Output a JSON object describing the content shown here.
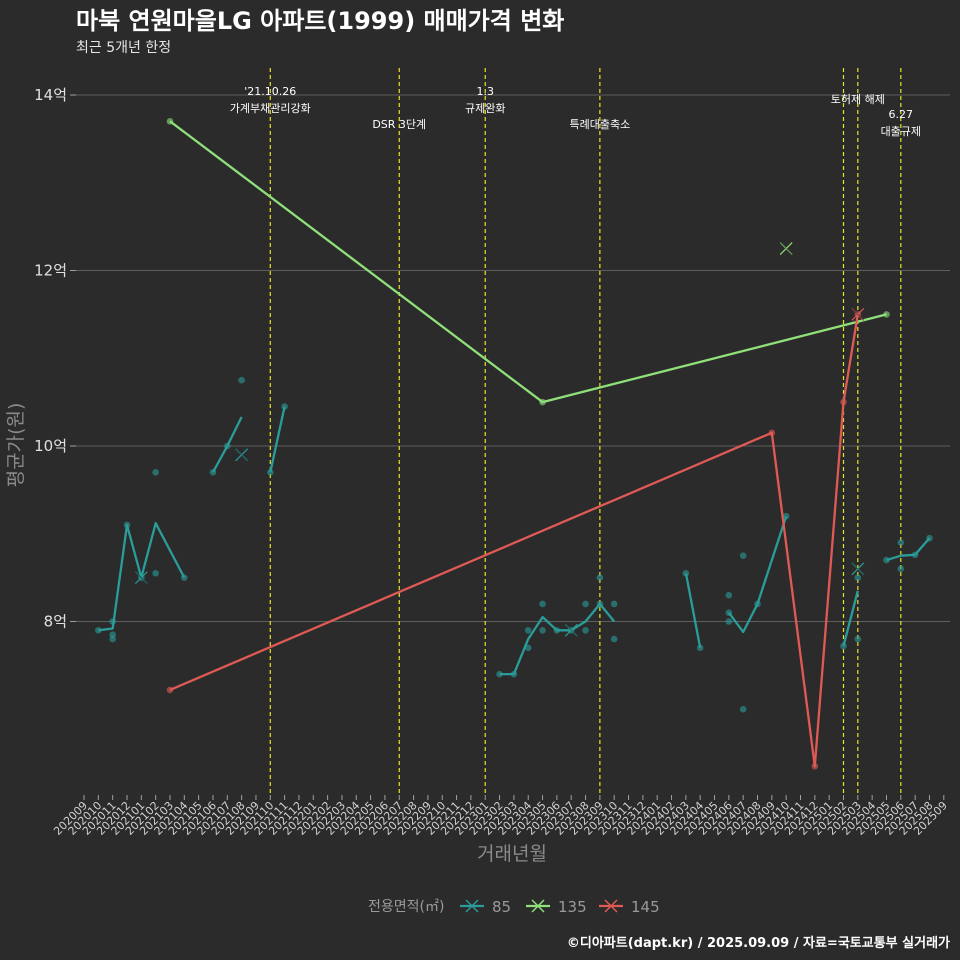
{
  "chart_data": {
    "type": "line",
    "title": "마북 연원마을LG 아파트(1999) 매매가격 변화",
    "subtitle": "최근 5개년 한정",
    "xlabel": "거래년월",
    "ylabel": "평균가(원)",
    "caption": "©디아파트(dapt.kr) / 2025.09.09 / 자료=국토교통부 실거래가",
    "ylim": [
      6.0,
      14.3
    ],
    "y_ticks": [
      {
        "value": 8,
        "label": "8억"
      },
      {
        "value": 10,
        "label": "10억"
      },
      {
        "value": 12,
        "label": "12억"
      },
      {
        "value": 14,
        "label": "14억"
      }
    ],
    "x_categories": [
      "202009",
      "202010",
      "202011",
      "202012",
      "202101",
      "202102",
      "202103",
      "202104",
      "202105",
      "202106",
      "202107",
      "202108",
      "202109",
      "202110",
      "202111",
      "202112",
      "202201",
      "202202",
      "202203",
      "202204",
      "202205",
      "202206",
      "202207",
      "202208",
      "202209",
      "202210",
      "202211",
      "202212",
      "202301",
      "202302",
      "202303",
      "202304",
      "202305",
      "202306",
      "202307",
      "202308",
      "202309",
      "202310",
      "202311",
      "202312",
      "202401",
      "202402",
      "202403",
      "202404",
      "202405",
      "202406",
      "202407",
      "202408",
      "202409",
      "202410",
      "202411",
      "202412",
      "202501",
      "202502",
      "202503",
      "202504",
      "202505",
      "202506",
      "202507",
      "202508",
      "202509"
    ],
    "annotations": [
      {
        "x": 13,
        "lines": [
          "'21.10.26",
          "가계부채관리강화"
        ],
        "level": "high"
      },
      {
        "x": 22,
        "lines": [
          "DSR 3단계"
        ],
        "level": "low"
      },
      {
        "x": 28,
        "lines": [
          "1.3",
          "규제완화"
        ],
        "level": "high"
      },
      {
        "x": 36,
        "lines": [
          "특례대출축소"
        ],
        "level": "low"
      },
      {
        "x": 53,
        "lines": [],
        "level": "none"
      },
      {
        "x": 54,
        "lines": [
          "토허제 해제"
        ],
        "level": "mid"
      },
      {
        "x": 57,
        "lines": [
          "6.27",
          "대출규제"
        ],
        "level": "low2"
      }
    ],
    "legend_title": "전용면적(㎡)",
    "series": [
      {
        "name": "85",
        "color": "#2a9d9a",
        "segments": [
          [
            [
              1,
              7.9
            ],
            [
              2,
              7.92
            ],
            [
              3,
              9.1
            ],
            [
              4,
              8.5
            ],
            [
              5,
              9.12
            ],
            [
              7,
              8.5
            ]
          ],
          [
            [
              9,
              9.7
            ],
            [
              10,
              10.0
            ],
            [
              11,
              10.33
            ]
          ],
          [
            [
              13,
              9.7
            ],
            [
              14,
              10.45
            ]
          ],
          [
            [
              29,
              7.4
            ],
            [
              30,
              7.4
            ],
            [
              31,
              7.8
            ],
            [
              32,
              8.05
            ],
            [
              33,
              7.9
            ],
            [
              34,
              7.9
            ],
            [
              35,
              8.0
            ],
            [
              36,
              8.2
            ],
            [
              37,
              8.0
            ]
          ],
          [
            [
              42,
              8.55
            ],
            [
              43,
              7.7
            ]
          ],
          [
            [
              45,
              8.1
            ],
            [
              46,
              7.88
            ],
            [
              47,
              8.2
            ],
            [
              49,
              9.2
            ]
          ],
          [
            [
              53,
              7.72
            ],
            [
              54,
              8.35
            ]
          ],
          [
            [
              56,
              8.7
            ],
            [
              57,
              8.75
            ],
            [
              58,
              8.76
            ],
            [
              59,
              8.95
            ]
          ]
        ],
        "points": [
          [
            1,
            7.9
          ],
          [
            2,
            7.85
          ],
          [
            2,
            7.8
          ],
          [
            2,
            8.0
          ],
          [
            3,
            9.1
          ],
          [
            4,
            8.5
          ],
          [
            5,
            9.7
          ],
          [
            5,
            8.55
          ],
          [
            7,
            8.5
          ],
          [
            9,
            9.7
          ],
          [
            10,
            10.0
          ],
          [
            11,
            10.75
          ],
          [
            13,
            9.7
          ],
          [
            14,
            10.45
          ],
          [
            29,
            7.4
          ],
          [
            30,
            7.4
          ],
          [
            31,
            7.9
          ],
          [
            31,
            7.7
          ],
          [
            32,
            8.2
          ],
          [
            32,
            7.9
          ],
          [
            33,
            7.9
          ],
          [
            34,
            7.9
          ],
          [
            35,
            8.2
          ],
          [
            35,
            7.9
          ],
          [
            36,
            8.5
          ],
          [
            36,
            8.2
          ],
          [
            37,
            8.2
          ],
          [
            37,
            7.8
          ],
          [
            42,
            8.55
          ],
          [
            43,
            7.7
          ],
          [
            45,
            8.3
          ],
          [
            45,
            8.1
          ],
          [
            45,
            8.0
          ],
          [
            46,
            8.75
          ],
          [
            46,
            7.0
          ],
          [
            47,
            8.2
          ],
          [
            49,
            9.2
          ],
          [
            53,
            7.72
          ],
          [
            54,
            8.5
          ],
          [
            54,
            7.8
          ],
          [
            56,
            8.7
          ],
          [
            57,
            8.9
          ],
          [
            57,
            8.6
          ],
          [
            58,
            8.76
          ],
          [
            59,
            8.95
          ]
        ],
        "crosses": [
          [
            4,
            8.5
          ],
          [
            11,
            9.9
          ],
          [
            34,
            7.9
          ],
          [
            54,
            8.6
          ]
        ]
      },
      {
        "name": "135",
        "color": "#90e07a",
        "segments": [
          [
            [
              6,
              13.7
            ],
            [
              32,
              10.5
            ],
            [
              56,
              11.5
            ]
          ]
        ],
        "points": [
          [
            6,
            13.7
          ],
          [
            32,
            10.5
          ],
          [
            56,
            11.5
          ]
        ],
        "crosses": [
          [
            49,
            12.25
          ]
        ]
      },
      {
        "name": "145",
        "color": "#e05a55",
        "segments": [
          [
            [
              6,
              7.22
            ],
            [
              48,
              10.15
            ],
            [
              51,
              6.35
            ],
            [
              53,
              10.5
            ],
            [
              54,
              11.5
            ]
          ]
        ],
        "points": [
          [
            6,
            7.22
          ],
          [
            48,
            10.15
          ],
          [
            51,
            6.35
          ],
          [
            53,
            10.5
          ],
          [
            54,
            11.5
          ]
        ],
        "crosses": [
          [
            54,
            11.5
          ]
        ]
      }
    ]
  }
}
